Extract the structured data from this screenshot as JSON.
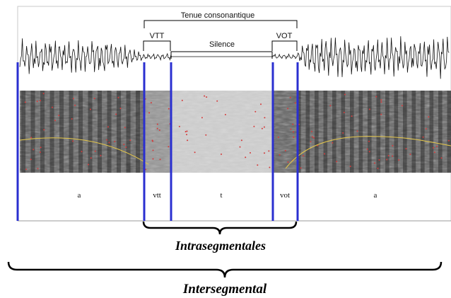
{
  "top_labels": {
    "tenue": "Tenue consonantique",
    "vtt": "VTT",
    "silence": "Silence",
    "vot": "VOT"
  },
  "segments": [
    "a",
    "vtt",
    "t",
    "vot",
    "a"
  ],
  "bottom_labels": {
    "intra": "Intrasegmentales",
    "inter": "Intersegmental"
  },
  "colors": {
    "boundary": "#2a2fd0",
    "pitch": "#1f6fe0",
    "formant": "#e6c84a",
    "waveform": "#111111",
    "brace": "#000000"
  }
}
